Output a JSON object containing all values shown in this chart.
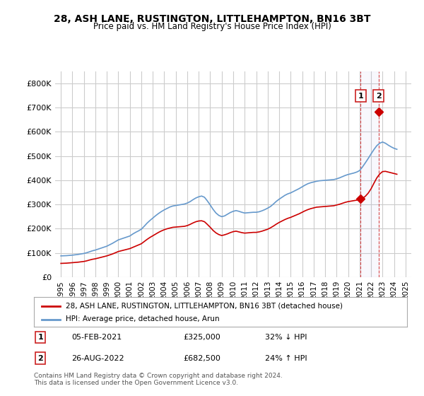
{
  "title": "28, ASH LANE, RUSTINGTON, LITTLEHAMPTON, BN16 3BT",
  "subtitle": "Price paid vs. HM Land Registry's House Price Index (HPI)",
  "xlim": [
    1994.5,
    2025.5
  ],
  "ylim": [
    0,
    850000
  ],
  "yticks": [
    0,
    100000,
    200000,
    300000,
    400000,
    500000,
    600000,
    700000,
    800000
  ],
  "ytick_labels": [
    "£0",
    "£100K",
    "£200K",
    "£300K",
    "£400K",
    "£500K",
    "£600K",
    "£700K",
    "£800K"
  ],
  "xticks": [
    1995,
    1996,
    1997,
    1998,
    1999,
    2000,
    2001,
    2002,
    2003,
    2004,
    2005,
    2006,
    2007,
    2008,
    2009,
    2010,
    2011,
    2012,
    2013,
    2014,
    2015,
    2016,
    2017,
    2018,
    2019,
    2020,
    2021,
    2022,
    2023,
    2024,
    2025
  ],
  "hpi_color": "#6699cc",
  "price_color": "#cc0000",
  "sale1_x": 2021.09,
  "sale1_y": 325000,
  "sale2_x": 2022.65,
  "sale2_y": 682500,
  "sale1_label": "1",
  "sale2_label": "2",
  "legend_label_price": "28, ASH LANE, RUSTINGTON, LITTLEHAMPTON, BN16 3BT (detached house)",
  "legend_label_hpi": "HPI: Average price, detached house, Arun",
  "annotation1": "05-FEB-2021     £325,000     32% ↓ HPI",
  "annotation2": "26-AUG-2022     £682,500     24% ↑ HPI",
  "copyright": "Contains HM Land Registry data © Crown copyright and database right 2024.\nThis data is licensed under the Open Government Licence v3.0.",
  "bg_color": "#ffffff",
  "grid_color": "#cccccc",
  "hpi_data_x": [
    1995,
    1995.25,
    1995.5,
    1995.75,
    1996,
    1996.25,
    1996.5,
    1996.75,
    1997,
    1997.25,
    1997.5,
    1997.75,
    1998,
    1998.25,
    1998.5,
    1998.75,
    1999,
    1999.25,
    1999.5,
    1999.75,
    2000,
    2000.25,
    2000.5,
    2000.75,
    2001,
    2001.25,
    2001.5,
    2001.75,
    2002,
    2002.25,
    2002.5,
    2002.75,
    2003,
    2003.25,
    2003.5,
    2003.75,
    2004,
    2004.25,
    2004.5,
    2004.75,
    2005,
    2005.25,
    2005.5,
    2005.75,
    2006,
    2006.25,
    2006.5,
    2006.75,
    2007,
    2007.25,
    2007.5,
    2007.75,
    2008,
    2008.25,
    2008.5,
    2008.75,
    2009,
    2009.25,
    2009.5,
    2009.75,
    2010,
    2010.25,
    2010.5,
    2010.75,
    2011,
    2011.25,
    2011.5,
    2011.75,
    2012,
    2012.25,
    2012.5,
    2012.75,
    2013,
    2013.25,
    2013.5,
    2013.75,
    2014,
    2014.25,
    2014.5,
    2014.75,
    2015,
    2015.25,
    2015.5,
    2015.75,
    2016,
    2016.25,
    2016.5,
    2016.75,
    2017,
    2017.25,
    2017.5,
    2017.75,
    2018,
    2018.25,
    2018.5,
    2018.75,
    2019,
    2019.25,
    2019.5,
    2019.75,
    2020,
    2020.25,
    2020.5,
    2020.75,
    2021,
    2021.25,
    2021.5,
    2021.75,
    2022,
    2022.25,
    2022.5,
    2022.75,
    2023,
    2023.25,
    2023.5,
    2023.75,
    2024,
    2024.25
  ],
  "hpi_data_y": [
    88000,
    88500,
    89000,
    90000,
    91000,
    92500,
    94000,
    96000,
    98000,
    101000,
    105000,
    109000,
    112000,
    116000,
    120000,
    124000,
    128000,
    134000,
    140000,
    147000,
    154000,
    158000,
    162000,
    166000,
    170000,
    178000,
    185000,
    191000,
    198000,
    210000,
    223000,
    234000,
    244000,
    254000,
    263000,
    271000,
    278000,
    284000,
    290000,
    294000,
    296000,
    298000,
    300000,
    302000,
    306000,
    312000,
    320000,
    327000,
    332000,
    335000,
    330000,
    315000,
    298000,
    280000,
    265000,
    255000,
    250000,
    253000,
    260000,
    267000,
    272000,
    275000,
    272000,
    268000,
    265000,
    266000,
    267000,
    268000,
    268000,
    270000,
    274000,
    279000,
    285000,
    292000,
    302000,
    313000,
    322000,
    330000,
    338000,
    344000,
    348000,
    354000,
    360000,
    366000,
    373000,
    380000,
    386000,
    390000,
    393000,
    396000,
    398000,
    399000,
    400000,
    401000,
    402000,
    403000,
    406000,
    410000,
    415000,
    420000,
    424000,
    427000,
    430000,
    434000,
    440000,
    455000,
    472000,
    490000,
    509000,
    527000,
    543000,
    553000,
    558000,
    553000,
    545000,
    538000,
    532000,
    528000
  ],
  "price_data_x": [
    1995,
    1995.25,
    1995.5,
    1995.75,
    1996,
    1996.25,
    1996.5,
    1996.75,
    1997,
    1997.25,
    1997.5,
    1997.75,
    1998,
    1998.25,
    1998.5,
    1998.75,
    1999,
    1999.25,
    1999.5,
    1999.75,
    2000,
    2000.25,
    2000.5,
    2000.75,
    2001,
    2001.25,
    2001.5,
    2001.75,
    2002,
    2002.25,
    2002.5,
    2002.75,
    2003,
    2003.25,
    2003.5,
    2003.75,
    2004,
    2004.25,
    2004.5,
    2004.75,
    2005,
    2005.25,
    2005.5,
    2005.75,
    2006,
    2006.25,
    2006.5,
    2006.75,
    2007,
    2007.25,
    2007.5,
    2007.75,
    2008,
    2008.25,
    2008.5,
    2008.75,
    2009,
    2009.25,
    2009.5,
    2009.75,
    2010,
    2010.25,
    2010.5,
    2010.75,
    2011,
    2011.25,
    2011.5,
    2011.75,
    2012,
    2012.25,
    2012.5,
    2012.75,
    2013,
    2013.25,
    2013.5,
    2013.75,
    2014,
    2014.25,
    2014.5,
    2014.75,
    2015,
    2015.25,
    2015.5,
    2015.75,
    2016,
    2016.25,
    2016.5,
    2016.75,
    2017,
    2017.25,
    2017.5,
    2017.75,
    2018,
    2018.25,
    2018.5,
    2018.75,
    2019,
    2019.25,
    2019.5,
    2019.75,
    2020,
    2020.25,
    2020.5,
    2020.75,
    2021,
    2021.25,
    2021.5,
    2021.75,
    2022,
    2022.25,
    2022.5,
    2022.75,
    2023,
    2023.25,
    2023.5,
    2023.75,
    2024,
    2024.25
  ],
  "price_data_y": [
    57000,
    57500,
    58000,
    59000,
    60000,
    61000,
    62000,
    63500,
    65000,
    67500,
    71000,
    74000,
    76000,
    79000,
    82000,
    85000,
    88000,
    92000,
    96000,
    101000,
    106000,
    109000,
    112000,
    115000,
    118000,
    123000,
    128000,
    133000,
    138000,
    147000,
    156000,
    164000,
    171000,
    178000,
    185000,
    191000,
    196000,
    200000,
    203000,
    206000,
    207000,
    208000,
    209000,
    210000,
    213000,
    218000,
    224000,
    229000,
    232000,
    233000,
    229000,
    218000,
    206000,
    193000,
    183000,
    176000,
    172000,
    175000,
    179000,
    184000,
    188000,
    190000,
    187000,
    184000,
    182000,
    183000,
    184000,
    185000,
    185000,
    187000,
    190000,
    194000,
    198000,
    204000,
    211000,
    219000,
    226000,
    232000,
    238000,
    243000,
    247000,
    252000,
    257000,
    262000,
    268000,
    274000,
    279000,
    283000,
    286000,
    289000,
    290000,
    291000,
    292000,
    293000,
    294000,
    295000,
    298000,
    301000,
    305000,
    309000,
    312000,
    314000,
    316000,
    318000,
    321000,
    325000,
    334000,
    347000,
    365000,
    388000,
    410000,
    426000,
    436000,
    437000,
    434000,
    431000,
    428000,
    425000
  ]
}
